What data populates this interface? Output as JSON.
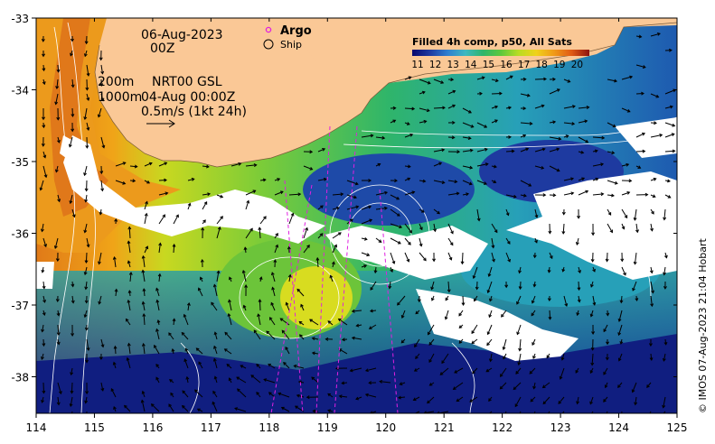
{
  "map": {
    "date_line1": "06-Aug-2023",
    "date_line2": "00Z",
    "contour_label_1": "200m",
    "contour_label_2": "1000m",
    "altimetry_label": "NRT00 GSL",
    "altimetry_time": "04-Aug 00:00Z",
    "vector_scale_label": "0.5m/s (1kt 24h)",
    "legend_argo": "Argo",
    "legend_ship": "Ship",
    "colorbar_title": "Filled 4h comp, p50, All Sats",
    "colorbar_ticks": [
      "11",
      "12",
      "13",
      "14",
      "15",
      "16",
      "17",
      "18",
      "19",
      "20"
    ],
    "colorbar_colors": [
      "#08086e",
      "#1e3aa0",
      "#2f7fd0",
      "#3fb8c0",
      "#2fb56a",
      "#5cc83c",
      "#b8dc24",
      "#f0d21a",
      "#f09a18",
      "#e05a14",
      "#8c1410"
    ],
    "x_ticks": [
      "114",
      "115",
      "116",
      "117",
      "118",
      "119",
      "120",
      "121",
      "122",
      "123",
      "124",
      "125"
    ],
    "y_ticks": [
      "-33",
      "-34",
      "-35",
      "-36",
      "-37",
      "-38"
    ],
    "credit": "© IMOS 07-Aug-2023 21:04 Hobart",
    "land_color": "#fac896",
    "argo_color": "#e020e0"
  }
}
